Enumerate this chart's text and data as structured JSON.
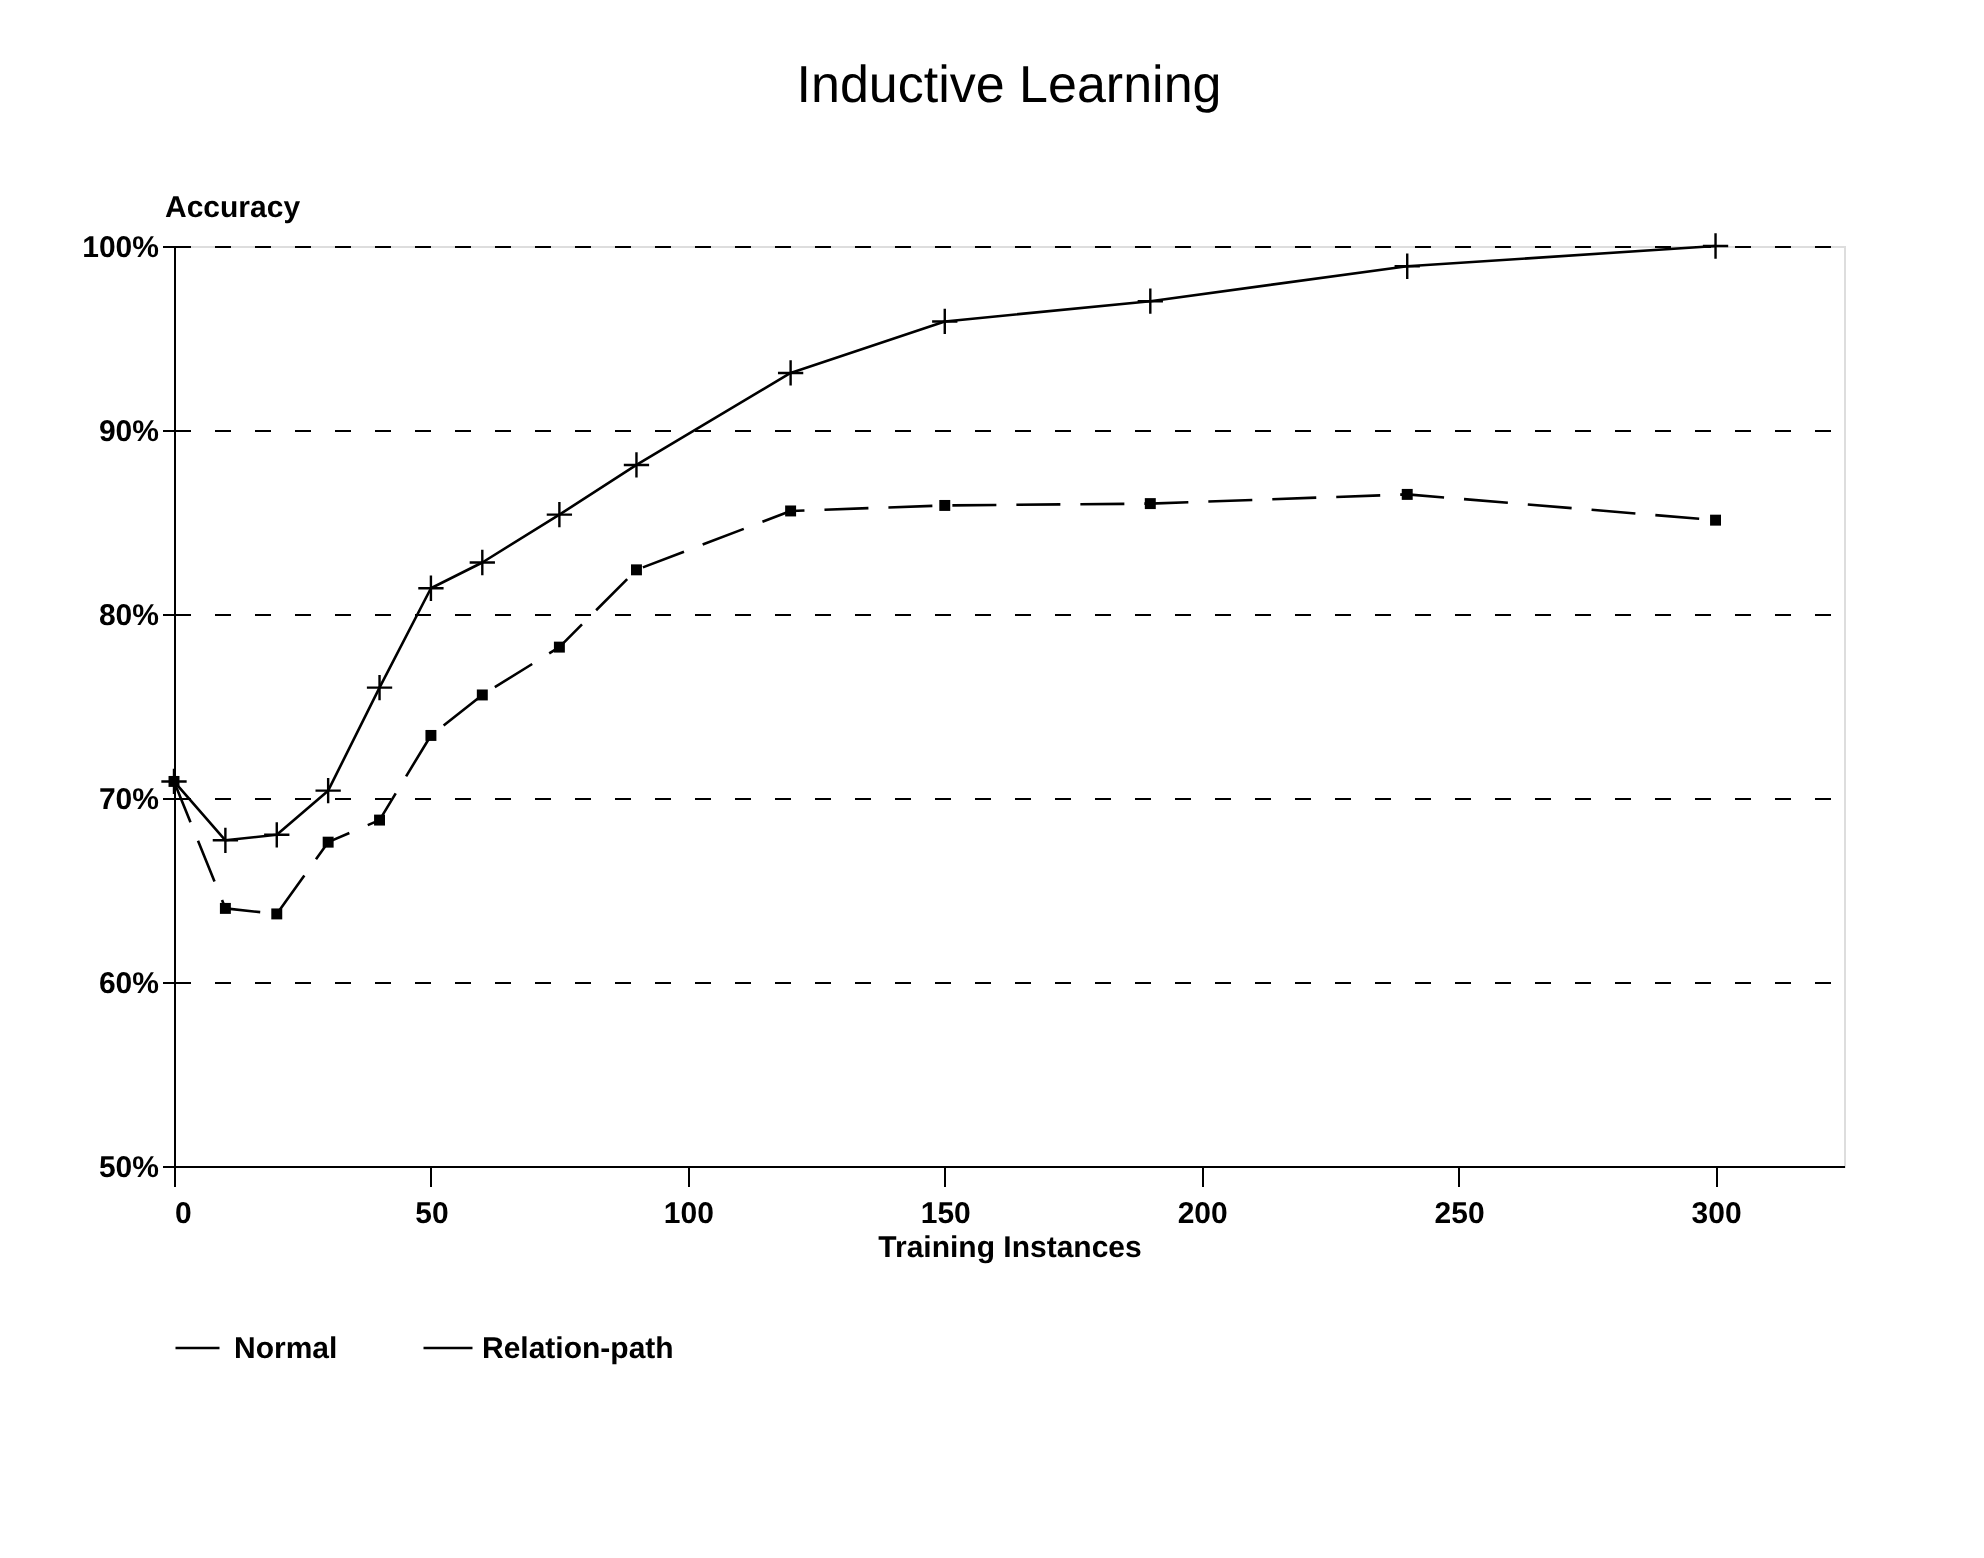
{
  "chart_data": {
    "type": "line",
    "title": "Inductive Learning",
    "xlabel": "Training Instances",
    "ylabel": "Accuracy",
    "x": [
      0,
      10,
      20,
      30,
      40,
      50,
      60,
      75,
      90,
      120,
      150,
      190,
      240,
      300
    ],
    "series": [
      {
        "name": "Normal",
        "color": "#000000",
        "marker": "square",
        "line_style": "dashed",
        "values": [
          70.9,
          64.0,
          63.7,
          67.6,
          68.8,
          73.4,
          75.6,
          78.2,
          82.4,
          85.6,
          85.9,
          86.0,
          86.5,
          85.1
        ]
      },
      {
        "name": "Relation-path",
        "color": "#000000",
        "marker": "cross",
        "line_style": "solid",
        "values": [
          70.9,
          67.7,
          68.0,
          70.4,
          76.0,
          81.4,
          82.8,
          85.4,
          88.1,
          93.1,
          95.9,
          97.0,
          98.9,
          100.0
        ]
      }
    ],
    "xlim": [
      0,
      325
    ],
    "xticks": [
      0,
      50,
      100,
      150,
      200,
      250,
      300
    ],
    "ylim": [
      50,
      100
    ],
    "yticks": [
      {
        "value": 50,
        "label": "50%"
      },
      {
        "value": 60,
        "label": "60%"
      },
      {
        "value": 70,
        "label": "70%"
      },
      {
        "value": 80,
        "label": "80%"
      },
      {
        "value": 90,
        "label": "90%"
      },
      {
        "value": 100,
        "label": "100%"
      }
    ],
    "grid": "y",
    "legend": "bottom"
  }
}
